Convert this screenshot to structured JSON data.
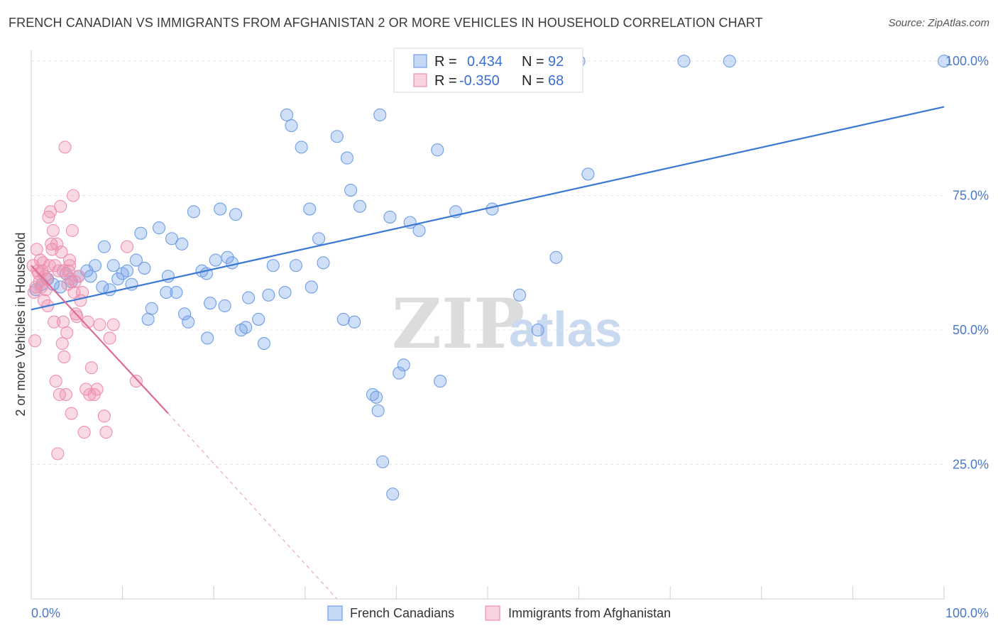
{
  "title": "FRENCH CANADIAN VS IMMIGRANTS FROM AFGHANISTAN 2 OR MORE VEHICLES IN HOUSEHOLD CORRELATION CHART",
  "source": "Source: ZipAtlas.com",
  "watermark": {
    "zip": "ZIP",
    "atlas": "atlas"
  },
  "legend_stats": [
    {
      "r_label": "R =",
      "r_value": "0.434",
      "n_label": "N =",
      "n_value": "92",
      "color": "#6f9ee6"
    },
    {
      "r_label": "R =",
      "r_value": "-0.350",
      "n_label": "N =",
      "n_value": "68",
      "color": "#ee8fae"
    }
  ],
  "chart_data": {
    "type": "scatter",
    "ylabel": "2 or more Vehicles in Household",
    "xlabel": "",
    "xlim": [
      0,
      100
    ],
    "ylim": [
      0,
      102
    ],
    "x_tick_labels": [
      "0.0%",
      "100.0%"
    ],
    "y_ticks": [
      25,
      50,
      75,
      100
    ],
    "y_tick_labels": [
      "25.0%",
      "50.0%",
      "75.0%",
      "100.0%"
    ],
    "grid": true,
    "legend_position": "bottom",
    "series": [
      {
        "name": "French Canadians",
        "color": "#6f9ee6",
        "trend": {
          "x0": 0,
          "y0": 53.8,
          "x1": 100,
          "y1": 91.5,
          "style": "solid"
        },
        "points": [
          [
            0.5,
            57.5
          ],
          [
            1.2,
            58.5
          ],
          [
            1.8,
            59.5
          ],
          [
            2.4,
            58.5
          ],
          [
            3.2,
            58
          ],
          [
            3.8,
            60.5
          ],
          [
            4.4,
            59
          ],
          [
            5.2,
            60
          ],
          [
            6.1,
            61
          ],
          [
            6.5,
            60
          ],
          [
            7,
            62
          ],
          [
            7.8,
            58
          ],
          [
            8,
            65.5
          ],
          [
            8.6,
            57.5
          ],
          [
            9,
            62
          ],
          [
            9.5,
            59.5
          ],
          [
            10,
            60.5
          ],
          [
            10.5,
            61
          ],
          [
            11,
            58.5
          ],
          [
            11.5,
            63
          ],
          [
            12,
            68
          ],
          [
            12.4,
            61.5
          ],
          [
            12.8,
            52
          ],
          [
            13.2,
            54
          ],
          [
            14,
            69
          ],
          [
            14.8,
            57
          ],
          [
            15,
            60
          ],
          [
            15.4,
            67
          ],
          [
            15.9,
            57
          ],
          [
            16.5,
            66
          ],
          [
            16.8,
            53
          ],
          [
            17.2,
            51.5
          ],
          [
            17.8,
            72
          ],
          [
            18.7,
            61
          ],
          [
            19.2,
            60.5
          ],
          [
            19.3,
            48.5
          ],
          [
            19.6,
            55
          ],
          [
            20.2,
            63
          ],
          [
            20.7,
            72.5
          ],
          [
            21.2,
            54.5
          ],
          [
            21.5,
            63.5
          ],
          [
            22,
            62.5
          ],
          [
            22.4,
            71.5
          ],
          [
            23,
            50
          ],
          [
            23.5,
            50.5
          ],
          [
            23.8,
            56
          ],
          [
            24.9,
            52
          ],
          [
            25.5,
            47.5
          ],
          [
            26,
            56.5
          ],
          [
            26.5,
            62
          ],
          [
            27.8,
            57
          ],
          [
            28,
            90
          ],
          [
            28.5,
            88
          ],
          [
            29,
            62
          ],
          [
            29.6,
            84
          ],
          [
            30.5,
            72.5
          ],
          [
            30.7,
            58
          ],
          [
            32,
            62.5
          ],
          [
            31.5,
            67
          ],
          [
            33.5,
            86
          ],
          [
            34.2,
            52
          ],
          [
            34.6,
            82
          ],
          [
            35,
            76
          ],
          [
            35.4,
            51.5
          ],
          [
            36,
            73
          ],
          [
            37.4,
            38
          ],
          [
            37.8,
            37.5
          ],
          [
            38,
            35
          ],
          [
            38.5,
            25.5
          ],
          [
            38.2,
            90
          ],
          [
            39.3,
            71
          ],
          [
            39.6,
            19.5
          ],
          [
            40.3,
            42
          ],
          [
            40.8,
            43.5
          ],
          [
            41.5,
            70
          ],
          [
            42.5,
            68.5
          ],
          [
            44.5,
            83.5
          ],
          [
            44.8,
            40.5
          ],
          [
            46.5,
            72
          ],
          [
            47.8,
            100
          ],
          [
            50.5,
            72.5
          ],
          [
            53.5,
            56.5
          ],
          [
            55,
            100
          ],
          [
            55.5,
            50
          ],
          [
            57.5,
            63.5
          ],
          [
            60,
            100
          ],
          [
            61,
            79
          ],
          [
            71.5,
            100
          ],
          [
            76.5,
            100
          ],
          [
            100,
            100
          ]
        ]
      },
      {
        "name": "Immigrants from Afghanistan",
        "color": "#ee8fae",
        "trend": {
          "x0": 0,
          "y0": 62,
          "x1": 15,
          "y1": 34.5,
          "style": "solid",
          "dashed_to": {
            "x": 33.5,
            "y": 0
          }
        },
        "points": [
          [
            0.2,
            62
          ],
          [
            0.3,
            57
          ],
          [
            0.4,
            48
          ],
          [
            0.5,
            58
          ],
          [
            0.6,
            65
          ],
          [
            0.7,
            61
          ],
          [
            0.8,
            60.5
          ],
          [
            0.9,
            59
          ],
          [
            1,
            63
          ],
          [
            1.1,
            58
          ],
          [
            1.2,
            61
          ],
          [
            1.3,
            62.5
          ],
          [
            1.4,
            55.5
          ],
          [
            1.5,
            60
          ],
          [
            1.6,
            57.5
          ],
          [
            1.7,
            59.5
          ],
          [
            1.8,
            54.5
          ],
          [
            1.9,
            71
          ],
          [
            2,
            62
          ],
          [
            2.1,
            72
          ],
          [
            2.2,
            66
          ],
          [
            2.3,
            65
          ],
          [
            2.4,
            68.5
          ],
          [
            2.5,
            51.5
          ],
          [
            2.6,
            62
          ],
          [
            2.7,
            40.5
          ],
          [
            2.8,
            66
          ],
          [
            2.9,
            27
          ],
          [
            3,
            61
          ],
          [
            3.1,
            38
          ],
          [
            3.2,
            73
          ],
          [
            3.3,
            64.5
          ],
          [
            3.4,
            47.5
          ],
          [
            3.5,
            51.5
          ],
          [
            3.6,
            45
          ],
          [
            3.7,
            84
          ],
          [
            3.8,
            38
          ],
          [
            3.9,
            49.5
          ],
          [
            4,
            58.5
          ],
          [
            4.1,
            61
          ],
          [
            4.2,
            63
          ],
          [
            4.3,
            59.5
          ],
          [
            4.4,
            34.5
          ],
          [
            4.5,
            68.5
          ],
          [
            4.6,
            75
          ],
          [
            4.7,
            57
          ],
          [
            4.8,
            59
          ],
          [
            4.9,
            53
          ],
          [
            5,
            52.5
          ],
          [
            5.2,
            60
          ],
          [
            5.4,
            55.5
          ],
          [
            5.6,
            57
          ],
          [
            5.8,
            31
          ],
          [
            6,
            39
          ],
          [
            6.2,
            51.5
          ],
          [
            6.4,
            38
          ],
          [
            6.6,
            43
          ],
          [
            6.9,
            38
          ],
          [
            7.2,
            39
          ],
          [
            7.5,
            51
          ],
          [
            8,
            34
          ],
          [
            8.2,
            31
          ],
          [
            8.6,
            48.5
          ],
          [
            9,
            51
          ],
          [
            10.5,
            65.5
          ],
          [
            11.5,
            40.5
          ],
          [
            3.5,
            61
          ],
          [
            4.2,
            62
          ]
        ]
      }
    ]
  }
}
